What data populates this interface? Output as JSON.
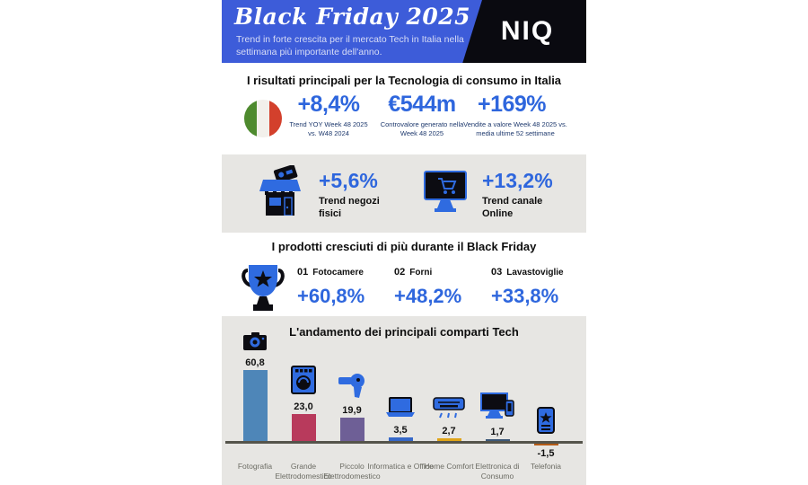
{
  "header": {
    "title": "Black Friday 2025",
    "subtitle": "Trend in forte crescita per il mercato Tech in Italia nella settimana più importante dell'anno.",
    "logo": "NIQ"
  },
  "results": {
    "title": "I risultati principali per la Tecnologia di consumo in Italia",
    "stats": [
      {
        "value": "+8,4%",
        "caption": "Trend YOY Week 48 2025 vs. W48 2024"
      },
      {
        "value": "€544m",
        "caption": "Controvalore generato nella Week 48 2025"
      },
      {
        "value": "+169%",
        "caption": "Vendite a valore Week 48 2025 vs. media ultime 52 settimane"
      }
    ]
  },
  "channels": {
    "items": [
      {
        "icon": "store-icon",
        "value": "+5,6%",
        "label": "Trend negozi fisici"
      },
      {
        "icon": "online-monitor-icon",
        "value": "+13,2%",
        "label": "Trend canale Online"
      }
    ]
  },
  "top_products": {
    "title": "I prodotti cresciuti di più durante il Black Friday",
    "icon": "trophy-icon",
    "items": [
      {
        "rank": "01",
        "name": "Fotocamere",
        "value": "+60,8%"
      },
      {
        "rank": "02",
        "name": "Forni",
        "value": "+48,2%"
      },
      {
        "rank": "03",
        "name": "Lavastoviglie",
        "value": "+33,8%"
      }
    ]
  },
  "chart_data": {
    "type": "bar",
    "title": "L'andamento dei principali comparti Tech",
    "categories": [
      "Fotografia",
      "Grande Elettrodomestico",
      "Piccolo Elettrodomestico",
      "Informatica e Office",
      "Home Comfort",
      "Elettronica di Consumo",
      "Telefonia"
    ],
    "values": [
      60.8,
      23.0,
      19.9,
      3.5,
      2.7,
      1.7,
      -1.5
    ],
    "value_labels": [
      "60,8",
      "23,0",
      "19,9",
      "3,5",
      "2,7",
      "1,7",
      "-1,5"
    ],
    "bar_colors": [
      "#4E86B8",
      "#B83A5C",
      "#6E5F96",
      "#3668C8",
      "#DFA418",
      "#3C5878",
      "#B55B17"
    ],
    "icons": [
      "camera-icon",
      "oven-icon",
      "hairdryer-icon",
      "laptop-icon",
      "air-conditioner-icon",
      "tv-phone-icon",
      "smartphone-icon"
    ],
    "xlabel": "",
    "ylabel": "",
    "ylim": [
      -5,
      70
    ],
    "grid": false,
    "legend": null
  },
  "colors": {
    "header_blue": "#3D5CD9",
    "accent_blue": "#2E66DD",
    "caption_navy": "#1F3A6E",
    "band_gray": "#E7E6E3",
    "icon_blue": "#2F6BE0",
    "axis_color": "#55544B"
  }
}
